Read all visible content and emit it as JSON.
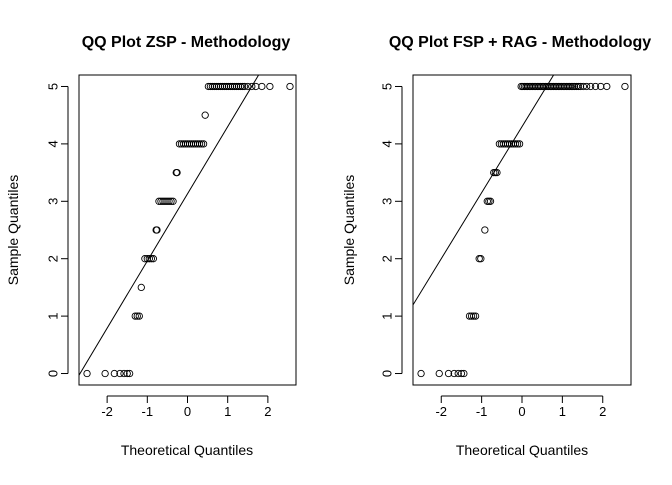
{
  "chart_data": [
    {
      "type": "scatter",
      "title": "QQ Plot ZSP - Methodology",
      "xlabel": "Theoretical Quantiles",
      "ylabel": "Sample Quantiles",
      "xlim": [
        -2.7,
        2.7
      ],
      "ylim": [
        -0.2,
        5.2
      ],
      "xticks": [
        -2,
        -1,
        0,
        1,
        2
      ],
      "yticks": [
        0,
        1,
        2,
        3,
        4,
        5
      ],
      "grid": false,
      "legend": "none",
      "reference_line": {
        "intercept": 3.13,
        "slope": 1.17
      },
      "points": [
        [
          -2.5,
          0
        ],
        [
          -2.05,
          0
        ],
        [
          -1.82,
          0
        ],
        [
          -1.68,
          0
        ],
        [
          -1.58,
          0
        ],
        [
          -1.5,
          0
        ],
        [
          -1.44,
          0
        ],
        [
          -1.3,
          1
        ],
        [
          -1.25,
          1
        ],
        [
          -1.2,
          1
        ],
        [
          -1.15,
          1.5
        ],
        [
          -1.06,
          2
        ],
        [
          -1.0,
          2
        ],
        [
          -0.95,
          2
        ],
        [
          -0.9,
          2
        ],
        [
          -0.85,
          2
        ],
        [
          -0.78,
          2.5
        ],
        [
          -0.76,
          2.5
        ],
        [
          -0.71,
          3
        ],
        [
          -0.66,
          3
        ],
        [
          -0.61,
          3
        ],
        [
          -0.56,
          3
        ],
        [
          -0.51,
          3
        ],
        [
          -0.46,
          3
        ],
        [
          -0.41,
          3
        ],
        [
          -0.36,
          3
        ],
        [
          -0.28,
          3.5
        ],
        [
          -0.26,
          3.5
        ],
        [
          -0.2,
          4
        ],
        [
          -0.15,
          4
        ],
        [
          -0.1,
          4
        ],
        [
          -0.05,
          4
        ],
        [
          0.0,
          4
        ],
        [
          0.05,
          4
        ],
        [
          0.1,
          4
        ],
        [
          0.15,
          4
        ],
        [
          0.2,
          4
        ],
        [
          0.25,
          4
        ],
        [
          0.3,
          4
        ],
        [
          0.35,
          4
        ],
        [
          0.4,
          4
        ],
        [
          0.44,
          4.5
        ],
        [
          0.52,
          5
        ],
        [
          0.57,
          5
        ],
        [
          0.62,
          5
        ],
        [
          0.67,
          5
        ],
        [
          0.72,
          5
        ],
        [
          0.77,
          5
        ],
        [
          0.82,
          5
        ],
        [
          0.87,
          5
        ],
        [
          0.92,
          5
        ],
        [
          0.97,
          5
        ],
        [
          1.02,
          5
        ],
        [
          1.07,
          5
        ],
        [
          1.12,
          5
        ],
        [
          1.17,
          5
        ],
        [
          1.22,
          5
        ],
        [
          1.27,
          5
        ],
        [
          1.32,
          5
        ],
        [
          1.37,
          5
        ],
        [
          1.42,
          5
        ],
        [
          1.5,
          5
        ],
        [
          1.6,
          5
        ],
        [
          1.7,
          5
        ],
        [
          1.85,
          5
        ],
        [
          2.05,
          5
        ],
        [
          2.55,
          5
        ]
      ]
    },
    {
      "type": "scatter",
      "title": "QQ Plot FSP + RAG - Methodology",
      "xlabel": "Theoretical Quantiles",
      "ylabel": "Sample Quantiles",
      "xlim": [
        -2.7,
        2.7
      ],
      "ylim": [
        -0.2,
        5.2
      ],
      "xticks": [
        -2,
        -1,
        0,
        1,
        2
      ],
      "yticks": [
        0,
        1,
        2,
        3,
        4,
        5
      ],
      "grid": false,
      "legend": "none",
      "reference_line": {
        "intercept": 4.3,
        "slope": 1.15
      },
      "points": [
        [
          -2.5,
          0
        ],
        [
          -2.05,
          0
        ],
        [
          -1.82,
          0
        ],
        [
          -1.68,
          0
        ],
        [
          -1.58,
          0
        ],
        [
          -1.5,
          0
        ],
        [
          -1.44,
          0
        ],
        [
          -1.3,
          1
        ],
        [
          -1.25,
          1
        ],
        [
          -1.2,
          1
        ],
        [
          -1.15,
          1
        ],
        [
          -1.06,
          2
        ],
        [
          -1.02,
          2
        ],
        [
          -0.92,
          2.5
        ],
        [
          -0.86,
          3
        ],
        [
          -0.82,
          3
        ],
        [
          -0.78,
          3
        ],
        [
          -0.7,
          3.5
        ],
        [
          -0.66,
          3.5
        ],
        [
          -0.62,
          3.5
        ],
        [
          -0.56,
          4
        ],
        [
          -0.51,
          4
        ],
        [
          -0.46,
          4
        ],
        [
          -0.41,
          4
        ],
        [
          -0.36,
          4
        ],
        [
          -0.31,
          4
        ],
        [
          -0.26,
          4
        ],
        [
          -0.21,
          4
        ],
        [
          -0.16,
          4
        ],
        [
          -0.11,
          4
        ],
        [
          -0.06,
          4
        ],
        [
          -0.02,
          5
        ],
        [
          0.02,
          5
        ],
        [
          0.06,
          5
        ],
        [
          0.1,
          5
        ],
        [
          0.14,
          5
        ],
        [
          0.18,
          5
        ],
        [
          0.22,
          5
        ],
        [
          0.26,
          5
        ],
        [
          0.3,
          5
        ],
        [
          0.34,
          5
        ],
        [
          0.38,
          5
        ],
        [
          0.42,
          5
        ],
        [
          0.46,
          5
        ],
        [
          0.5,
          5
        ],
        [
          0.54,
          5
        ],
        [
          0.58,
          5
        ],
        [
          0.62,
          5
        ],
        [
          0.66,
          5
        ],
        [
          0.7,
          5
        ],
        [
          0.74,
          5
        ],
        [
          0.78,
          5
        ],
        [
          0.82,
          5
        ],
        [
          0.86,
          5
        ],
        [
          0.9,
          5
        ],
        [
          0.94,
          5
        ],
        [
          0.98,
          5
        ],
        [
          1.02,
          5
        ],
        [
          1.06,
          5
        ],
        [
          1.1,
          5
        ],
        [
          1.14,
          5
        ],
        [
          1.18,
          5
        ],
        [
          1.22,
          5
        ],
        [
          1.26,
          5
        ],
        [
          1.3,
          5
        ],
        [
          1.35,
          5
        ],
        [
          1.4,
          5
        ],
        [
          1.45,
          5
        ],
        [
          1.52,
          5
        ],
        [
          1.6,
          5
        ],
        [
          1.7,
          5
        ],
        [
          1.82,
          5
        ],
        [
          1.95,
          5
        ],
        [
          2.1,
          5
        ],
        [
          2.55,
          5
        ]
      ]
    }
  ]
}
